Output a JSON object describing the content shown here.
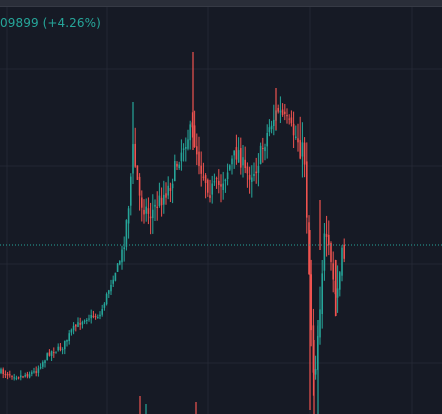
{
  "legend": {
    "price_change_text": "09899 (+4.26%)"
  },
  "colors": {
    "background": "#161a25",
    "grid": "#232733",
    "up_candle": "#26a69a",
    "down_candle": "#ef5350",
    "price_line": "#26a69a",
    "legend_text": "#26a69a"
  },
  "chart_data": {
    "type": "candlestick",
    "last_price_line": true,
    "grid": true,
    "candles": []
  }
}
